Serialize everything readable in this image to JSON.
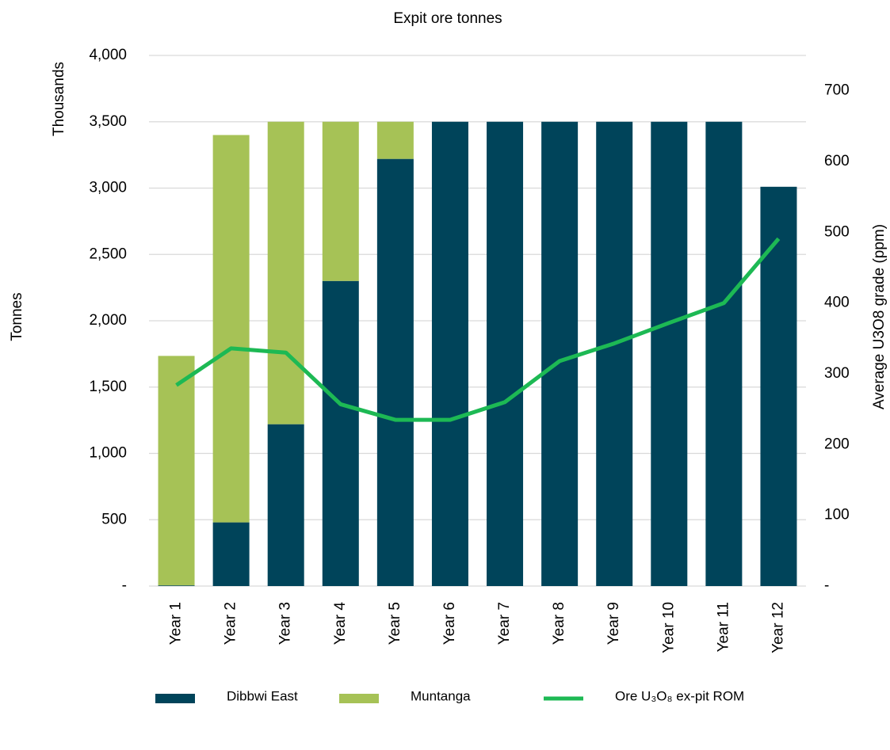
{
  "chart_data": {
    "type": "bar-line",
    "title": "Expit ore tonnes",
    "y_label": "Tonnes",
    "y_units_label": "Thousands",
    "y2_label": "Average U3O8 grade (ppm)",
    "categories": [
      "Year 1",
      "Year 2",
      "Year 3",
      "Year 4",
      "Year 5",
      "Year 6",
      "Year 7",
      "Year 8",
      "Year 9",
      "Year 10",
      "Year 11",
      "Year 12"
    ],
    "series": [
      {
        "name": "Dibbwi East",
        "color": "#00445a",
        "kind": "bar",
        "values": [
          5,
          480,
          1220,
          2300,
          3220,
          3500,
          3500,
          3500,
          3500,
          3500,
          3500,
          3010
        ]
      },
      {
        "name": "Muntanga",
        "color": "#a6c256",
        "kind": "bar",
        "values": [
          1730,
          2920,
          2280,
          1200,
          280,
          0,
          0,
          0,
          0,
          0,
          0,
          0
        ]
      },
      {
        "name": "Ore U₃O₈ ex-pit ROM",
        "color": "#1db954",
        "kind": "line",
        "axis": "y2",
        "values": [
          284,
          336,
          330,
          257,
          235,
          235,
          260,
          318,
          343,
          372,
          400,
          491
        ]
      }
    ],
    "ylim": [
      0,
      4000
    ],
    "yticks": [
      {
        "value": 0,
        "label": "-"
      },
      {
        "value": 500,
        "label": "500"
      },
      {
        "value": 1000,
        "label": "1,000"
      },
      {
        "value": 1500,
        "label": "1,500"
      },
      {
        "value": 2000,
        "label": "2,000"
      },
      {
        "value": 2500,
        "label": "2,500"
      },
      {
        "value": 3000,
        "label": "3,000"
      },
      {
        "value": 3500,
        "label": "3,500"
      },
      {
        "value": 4000,
        "label": "4,000"
      }
    ],
    "y2lim": [
      0,
      750
    ],
    "y2ticks": [
      {
        "value": 0,
        "label": "-"
      },
      100,
      200,
      300,
      400,
      500,
      600,
      700
    ],
    "grid": true,
    "legend": "bottom"
  }
}
